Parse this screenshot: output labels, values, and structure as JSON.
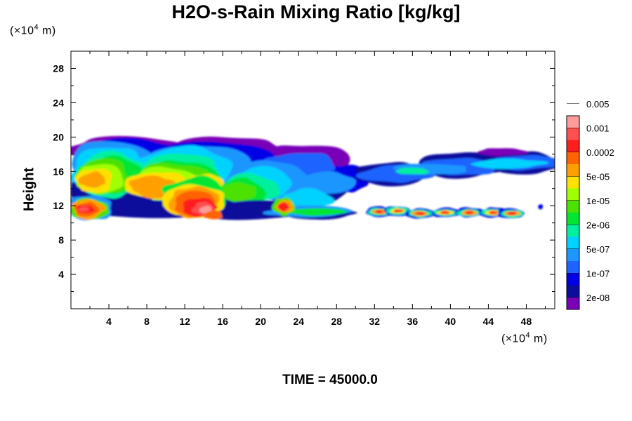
{
  "header": {
    "title": "H2O-s-Rain Mixing Ratio [kg/kg]",
    "y_unit_prefix": "(×10",
    "y_unit_exp": "4",
    "y_unit_suffix": " m)",
    "x_unit_prefix": "(×10",
    "x_unit_exp": "4",
    "x_unit_suffix": " m)"
  },
  "footer": {
    "time_label": "TIME = 45000.0"
  },
  "chart_data": {
    "type": "heatmap",
    "title": "H2O-s-Rain Mixing Ratio [kg/kg]",
    "xlabel": "",
    "ylabel": "Height",
    "xlim": [
      0,
      51
    ],
    "ylim": [
      0,
      30
    ],
    "x_ticks": [
      4,
      8,
      12,
      16,
      20,
      24,
      28,
      32,
      36,
      40,
      44,
      48
    ],
    "y_ticks": [
      4,
      8,
      12,
      16,
      20,
      24,
      28
    ],
    "grid": false,
    "legend_placement": "right",
    "colorbar": {
      "colors": [
        "#7a00b8",
        "#0d0d9c",
        "#0000e6",
        "#1e64ff",
        "#1e96ff",
        "#00d2ff",
        "#00f0a0",
        "#00e632",
        "#4be100",
        "#a0ff00",
        "#ffe100",
        "#ffa000",
        "#ff6400",
        "#ff1e1e",
        "#ff5050",
        "#ff9b9b"
      ],
      "labels": [
        "2e-08",
        "1e-07",
        "5e-07",
        "2e-06",
        "1e-05",
        "5e-05",
        "0.0002",
        "0.001",
        "0.005"
      ]
    },
    "features": [
      {
        "name": "upper-cloud-layer",
        "x_range": [
          0,
          30
        ],
        "y_range": [
          10.5,
          20.3
        ],
        "peak_level": "0.0002"
      },
      {
        "name": "core-west",
        "x_range": [
          0,
          3.5
        ],
        "y_range": [
          10.5,
          13
        ],
        "peak_level": "0.005"
      },
      {
        "name": "core-central",
        "x_range": [
          9,
          16
        ],
        "y_range": [
          10.5,
          14.5
        ],
        "peak_level": "0.005"
      },
      {
        "name": "core-22km",
        "x_range": [
          21.5,
          23.5
        ],
        "y_range": [
          11,
          13
        ],
        "peak_level": "0.001"
      },
      {
        "name": "trailing-anvil",
        "x_range": [
          29,
          51
        ],
        "y_range": [
          15,
          18.5
        ],
        "peak_level": "2e-06"
      },
      {
        "name": "low-band-east",
        "x_range": [
          31,
          48
        ],
        "y_range": [
          10.8,
          12
        ],
        "peak_level": "0.001"
      }
    ]
  }
}
